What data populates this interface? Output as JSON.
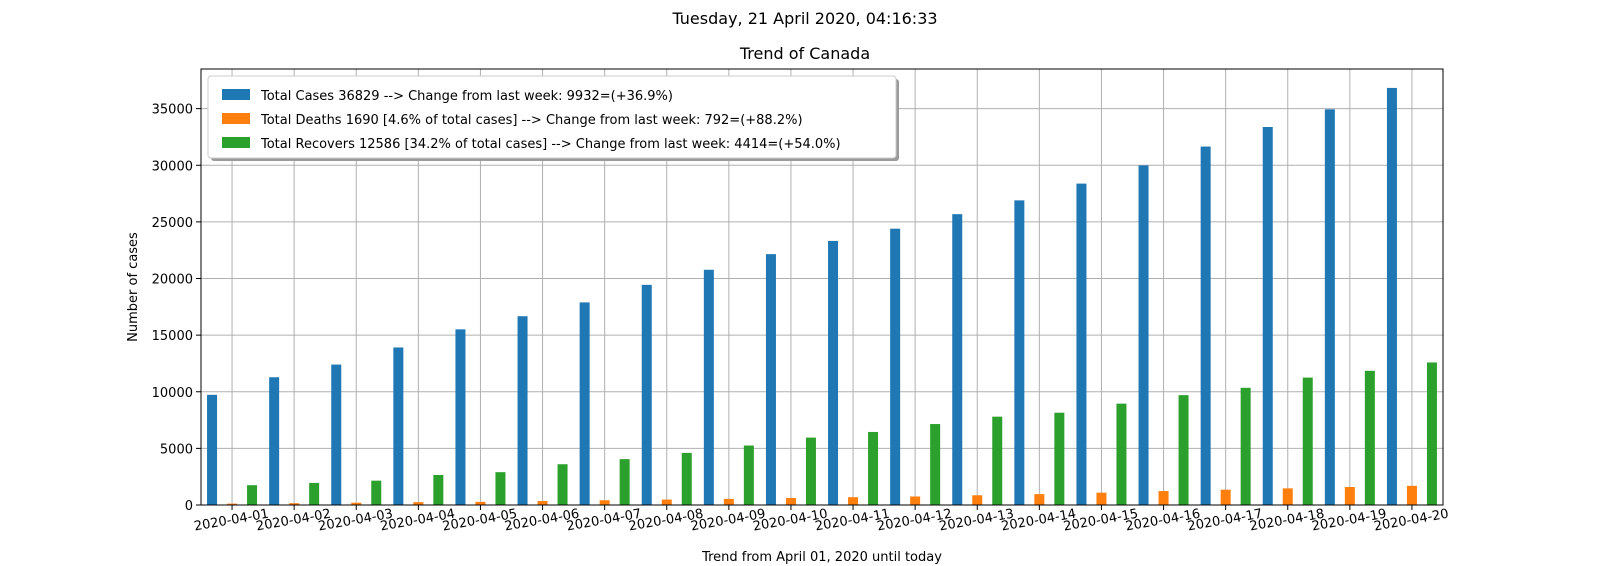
{
  "suptitle": "Tuesday, 21 April 2020, 04:16:33",
  "chart_data": {
    "type": "bar",
    "title": "Trend of Canada",
    "xlabel": "Trend from April 01, 2020 until today",
    "ylabel": "Number of cases",
    "ylim": [
      0,
      38500
    ],
    "yticks": [
      0,
      5000,
      10000,
      15000,
      20000,
      25000,
      30000,
      35000
    ],
    "grid": true,
    "legend_position": "top-left",
    "categories": [
      "2020-04-01",
      "2020-04-02",
      "2020-04-03",
      "2020-04-04",
      "2020-04-05",
      "2020-04-06",
      "2020-04-07",
      "2020-04-08",
      "2020-04-09",
      "2020-04-10",
      "2020-04-11",
      "2020-04-12",
      "2020-04-13",
      "2020-04-14",
      "2020-04-15",
      "2020-04-16",
      "2020-04-17",
      "2020-04-18",
      "2020-04-19",
      "2020-04-20"
    ],
    "series": [
      {
        "name": "Total Cases 36829 --> Change from last week: 9932=(+36.9%)",
        "color": "#1f77b4",
        "values": [
          9730,
          11280,
          12400,
          13910,
          15510,
          16670,
          17890,
          19440,
          20770,
          22150,
          23320,
          24400,
          25680,
          26900,
          28380,
          29990,
          31650,
          33380,
          34940,
          36829
        ]
      },
      {
        "name": "Total Deaths 1690 [4.6% of total cases] --> Change from last week: 792=(+88.2%)",
        "color": "#ff7f0e",
        "values": [
          120,
          160,
          200,
          250,
          280,
          350,
          420,
          480,
          540,
          620,
          690,
          750,
          860,
          960,
          1090,
          1230,
          1350,
          1470,
          1590,
          1690
        ]
      },
      {
        "name": "Total Recovers 12586 [34.2% of total cases] --> Change from last week: 4414=(+54.0%)",
        "color": "#2ca02c",
        "values": [
          1750,
          1950,
          2150,
          2650,
          2900,
          3600,
          4050,
          4600,
          5250,
          5950,
          6450,
          7150,
          7800,
          8150,
          8950,
          9700,
          10350,
          11250,
          11850,
          12586
        ]
      }
    ]
  }
}
